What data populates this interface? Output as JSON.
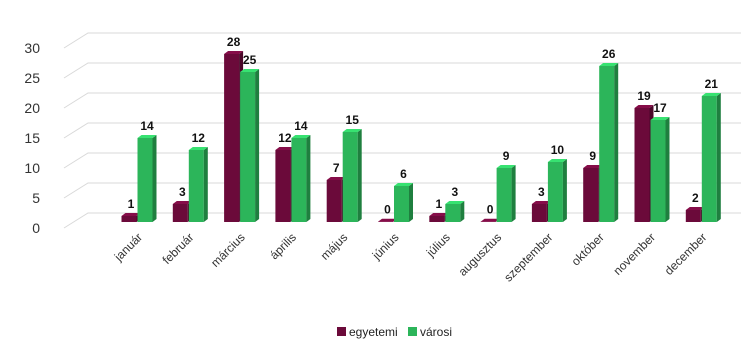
{
  "chart_data": {
    "type": "bar",
    "categories": [
      "január",
      "február",
      "március",
      "április",
      "május",
      "június",
      "július",
      "augusztus",
      "szeptember",
      "október",
      "november",
      "december"
    ],
    "series": [
      {
        "name": "egyetemi",
        "values": [
          1,
          3,
          28,
          12,
          7,
          0,
          1,
          0,
          3,
          9,
          19,
          2
        ],
        "color": "#6B0A3A"
      },
      {
        "name": "városi",
        "values": [
          14,
          12,
          25,
          14,
          15,
          6,
          3,
          9,
          10,
          26,
          17,
          21
        ],
        "color": "#2CB55A"
      }
    ],
    "y_ticks": [
      0,
      5,
      10,
      15,
      20,
      25,
      30
    ],
    "ylim": [
      0,
      30
    ],
    "grid": true,
    "legend_position": "bottom",
    "three_d": true
  }
}
